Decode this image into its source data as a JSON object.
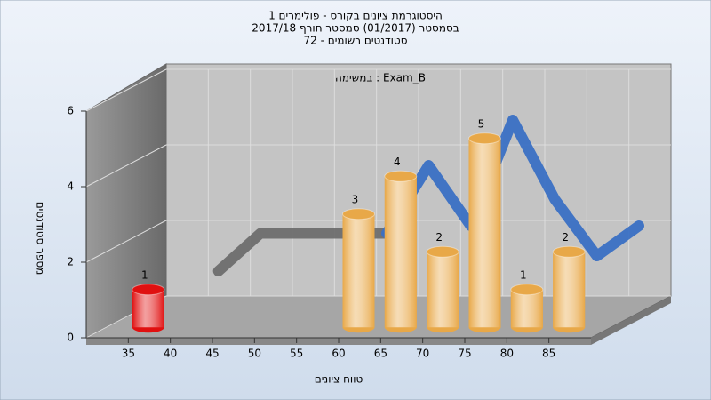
{
  "chart_data": {
    "type": "bar",
    "title": [
      "היסטוגרמת ציונים בקורס - פולימרים 1",
      "בסמסטר  (01/2017)  סמסטר חורף 2017/18",
      "סטודנטים רשומים - 72"
    ],
    "subtitle": "במשימה : Exam_B",
    "xlabel": "טווח ציונים",
    "ylabel": "מספר סטודנטים",
    "xlim": [
      30,
      90
    ],
    "xticks": [
      35,
      40,
      45,
      50,
      55,
      60,
      65,
      70,
      75,
      80,
      85
    ],
    "ylim": [
      0,
      6
    ],
    "yticks": [
      0,
      2,
      4,
      6
    ],
    "grid": true,
    "x": [
      35,
      60,
      65,
      70,
      75,
      80,
      85
    ],
    "values": [
      1,
      3,
      4,
      2,
      5,
      1,
      2
    ],
    "colors": [
      "#e01010",
      "#e8a848",
      "#e8a848",
      "#e8a848",
      "#e8a848",
      "#e8a848",
      "#e8a848"
    ],
    "ribbons": [
      {
        "color": "#6e6e6e",
        "x": [
          40,
          45,
          50,
          55,
          60
        ],
        "values": [
          1.1,
          2.1,
          2.1,
          2.1,
          2.1
        ]
      },
      {
        "color": "#3a70c4",
        "x": [
          60,
          65,
          70,
          75,
          80,
          85,
          90
        ],
        "values": [
          2.1,
          3.9,
          2.3,
          5.1,
          3.0,
          1.5,
          2.3
        ]
      }
    ]
  }
}
